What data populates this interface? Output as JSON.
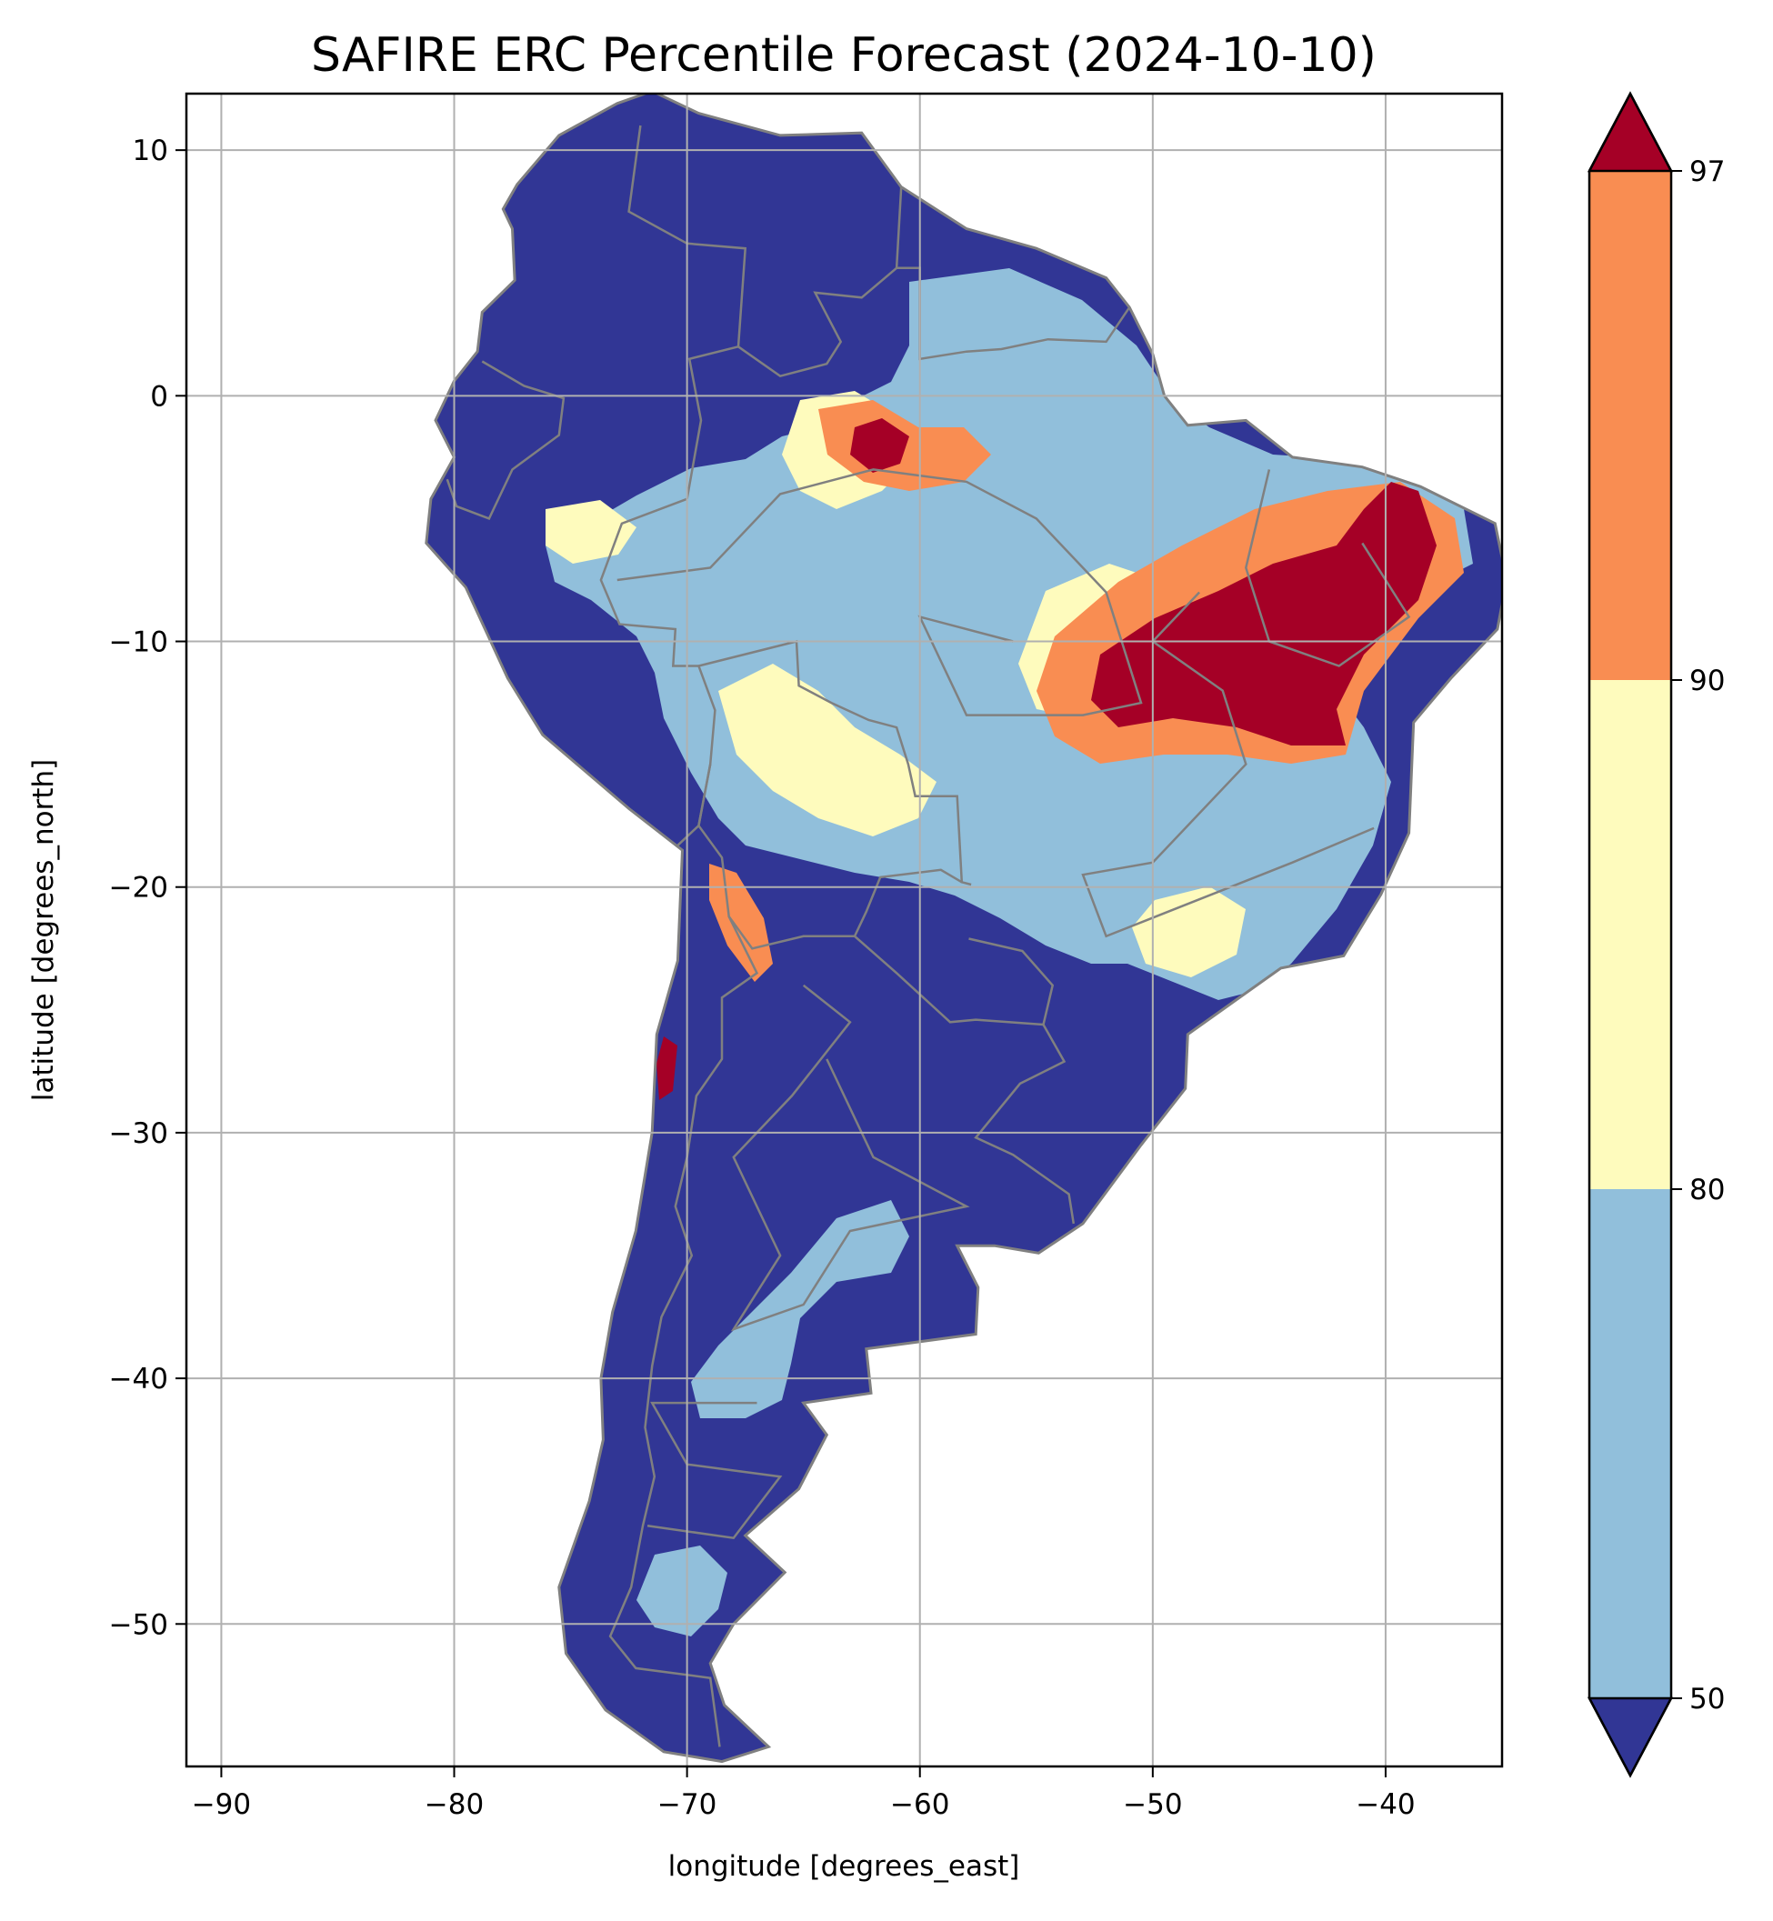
{
  "title": "SAFIRE ERC Percentile Forecast (2024-10-10)",
  "axes": {
    "xlabel": "longitude [degrees_east]",
    "ylabel": "latitude [degrees_north]",
    "xlim": [
      -91.5,
      -35
    ],
    "ylim": [
      -55.8,
      12.3
    ],
    "xticks": [
      "−90",
      "−80",
      "−70",
      "−60",
      "−50",
      "−40"
    ],
    "yticks": [
      "10",
      "0",
      "−10",
      "−20",
      "−30",
      "−40",
      "−50"
    ],
    "grid": true
  },
  "colorbar": {
    "ticks": [
      "50",
      "80",
      "90",
      "97"
    ],
    "bands": [
      {
        "range": [
          50,
          80
        ],
        "color": "#91bfdb"
      },
      {
        "range": [
          80,
          90
        ],
        "color": "#fefbbd"
      },
      {
        "range": [
          90,
          97
        ],
        "color": "#f98d52"
      }
    ],
    "under_color": "#313695",
    "over_color": "#a50026"
  },
  "colors": {
    "land_boundary": "#808080",
    "gridline": "#b0b0b0",
    "below_50": "#313695",
    "p50_80": "#91bfdb",
    "p80_90": "#fefbbd",
    "p90_97": "#f98d52",
    "above_97": "#a50026"
  }
}
